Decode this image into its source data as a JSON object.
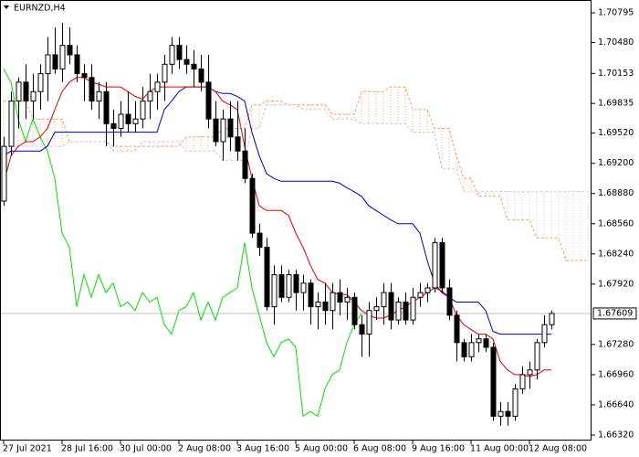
{
  "chart_data": {
    "type": "candlestick",
    "title": "EURNZD,H4",
    "x": [
      "27 Jul 2021",
      null,
      null,
      null,
      null,
      null,
      null,
      null,
      "28 Jul 16:00",
      null,
      null,
      null,
      null,
      null,
      null,
      null,
      "30 Jul 00:00",
      null,
      null,
      null,
      null,
      null,
      null,
      null,
      "2 Aug 08:00",
      null,
      null,
      null,
      null,
      null,
      null,
      null,
      "3 Aug 16:00",
      null,
      null,
      null,
      null,
      null,
      null,
      null,
      "5 Aug 00:00",
      null,
      null,
      null,
      null,
      null,
      null,
      null,
      "6 Aug 08:00",
      null,
      null,
      null,
      null,
      null,
      null,
      null,
      "9 Aug 16:00",
      null,
      null,
      null,
      null,
      null,
      null,
      null,
      "11 Aug 00:00",
      null,
      null,
      null,
      null,
      null,
      null,
      null,
      "12 Aug 08:00",
      null,
      null,
      null,
      null,
      null,
      null,
      null,
      null
    ],
    "open": [
      1.688,
      1.6938,
      1.6986,
      1.7006,
      1.6986,
      1.6996,
      1.7015,
      1.7035,
      1.702,
      1.7045,
      1.7035,
      1.7015,
      1.7011,
      1.6986,
      1.6996,
      1.6962,
      1.6957,
      1.6972,
      1.6962,
      1.6967,
      1.6986,
      1.6996,
      1.7006,
      1.7025,
      1.7045,
      1.703,
      1.7025,
      1.702,
      1.7006,
      1.6967,
      1.6943,
      1.6967,
      1.6948,
      1.6933,
      1.6904,
      1.6846,
      1.6831,
      1.6768,
      1.6802,
      1.6778,
      1.6802,
      1.6783,
      1.6793,
      1.6768,
      1.6773,
      1.6764,
      1.6783,
      1.6773,
      1.6778,
      1.6749,
      1.6739,
      1.6764,
      1.6768,
      1.6783,
      1.6754,
      1.6773,
      1.6754,
      1.6778,
      1.6783,
      1.6788,
      1.6836,
      1.6788,
      1.6759,
      1.673,
      1.6715,
      1.673,
      1.6734,
      1.6725,
      1.6652,
      1.6657,
      1.6652,
      1.6681,
      1.6696,
      1.6701,
      1.673,
      1.6749,
      null,
      null,
      null,
      null,
      null
    ],
    "high": [
      1.6948,
      1.6996,
      1.7011,
      1.7025,
      1.7015,
      1.7025,
      1.7054,
      1.7064,
      1.7069,
      1.7064,
      1.7045,
      1.7025,
      1.7025,
      1.7006,
      1.7006,
      1.6977,
      1.6986,
      1.6996,
      1.6986,
      1.7001,
      1.7015,
      1.7015,
      1.7035,
      1.7054,
      1.7054,
      1.7045,
      1.704,
      1.7035,
      1.7035,
      1.6986,
      1.6977,
      1.6986,
      1.6986,
      1.6957,
      1.6909,
      1.6856,
      1.6841,
      1.6812,
      1.6812,
      1.6807,
      1.6807,
      1.6802,
      1.6797,
      1.6783,
      1.6793,
      1.6793,
      1.6797,
      1.6788,
      1.6783,
      1.6759,
      1.6773,
      1.6778,
      1.6793,
      1.6793,
      1.6778,
      1.6783,
      1.6788,
      1.6793,
      1.6793,
      1.6841,
      1.6841,
      1.6797,
      1.6764,
      1.6734,
      1.6739,
      1.6739,
      1.6739,
      1.673,
      1.6667,
      1.6667,
      1.6686,
      1.6705,
      1.671,
      1.6734,
      1.6759,
      1.6764,
      null,
      null,
      null,
      null,
      null
    ],
    "low": [
      1.6875,
      1.6928,
      1.6957,
      1.6967,
      1.6967,
      1.6977,
      1.6986,
      1.7015,
      1.7006,
      1.7025,
      1.7006,
      1.6986,
      1.6977,
      1.6967,
      1.6938,
      1.6938,
      1.6948,
      1.6953,
      1.6953,
      1.6957,
      1.6967,
      1.6977,
      1.6986,
      1.7015,
      1.702,
      1.7015,
      1.7001,
      1.6996,
      1.6957,
      1.6938,
      1.6923,
      1.6933,
      1.6923,
      1.6899,
      1.6841,
      1.6822,
      1.6764,
      1.6749,
      1.6773,
      1.6773,
      1.6764,
      1.6764,
      1.6749,
      1.6744,
      1.6749,
      1.6744,
      1.6759,
      1.6754,
      1.6744,
      1.6715,
      1.6715,
      1.6754,
      1.6749,
      1.6744,
      1.6749,
      1.6749,
      1.6749,
      1.6768,
      1.6773,
      1.6783,
      1.6783,
      1.6754,
      1.671,
      1.671,
      1.671,
      1.672,
      1.672,
      1.6647,
      1.6642,
      1.6642,
      1.6647,
      1.6676,
      1.6681,
      1.6691,
      1.6725,
      1.6744,
      null,
      null,
      null,
      null,
      null
    ],
    "close": [
      1.6938,
      1.6986,
      1.7006,
      1.6986,
      1.6996,
      1.7015,
      1.7035,
      1.702,
      1.7045,
      1.7035,
      1.7015,
      1.7011,
      1.6986,
      1.6996,
      1.6962,
      1.6957,
      1.6972,
      1.6962,
      1.6967,
      1.6986,
      1.6996,
      1.7006,
      1.7025,
      1.7045,
      1.703,
      1.7025,
      1.702,
      1.7006,
      1.6967,
      1.6943,
      1.6967,
      1.6948,
      1.6933,
      1.6904,
      1.6846,
      1.6831,
      1.6768,
      1.6802,
      1.6778,
      1.6802,
      1.6783,
      1.6793,
      1.6768,
      1.6773,
      1.6764,
      1.6783,
      1.6773,
      1.6778,
      1.6749,
      1.6739,
      1.6764,
      1.6768,
      1.6783,
      1.6754,
      1.6773,
      1.6754,
      1.6778,
      1.6783,
      1.6788,
      1.6836,
      1.6788,
      1.6759,
      1.673,
      1.6715,
      1.673,
      1.6734,
      1.6725,
      1.6652,
      1.6657,
      1.6652,
      1.6681,
      1.6696,
      1.6701,
      1.673,
      1.6749,
      1.67609,
      null,
      null,
      null,
      null,
      null
    ],
    "bull_color": "#ffffff",
    "bear_color": "#000000",
    "outline_color": "#000000",
    "last_price": 1.67609,
    "last_price_color": "#c0c0c0",
    "cloud": {
      "span_a": {
        "color": "#f4a460",
        "values": [
          1.6986,
          1.6986,
          1.6986,
          1.6986,
          1.6967,
          1.6967,
          1.6967,
          1.6967,
          1.6967,
          1.6943,
          1.6943,
          1.6943,
          1.6943,
          1.6943,
          1.6943,
          1.6938,
          1.6938,
          1.6938,
          1.6938,
          1.6938,
          1.6938,
          1.6938,
          1.6938,
          1.6938,
          1.6938,
          1.6948,
          1.6948,
          1.6948,
          1.6948,
          1.6948,
          1.6957,
          1.6957,
          1.6957,
          1.6957,
          1.6982,
          1.6982,
          1.6986,
          1.6986,
          1.6986,
          1.6982,
          1.6982,
          1.6982,
          1.6982,
          1.6982,
          1.6982,
          1.6972,
          1.6972,
          1.6972,
          1.6972,
          1.6996,
          1.6996,
          1.6996,
          1.6996,
          1.7001,
          1.7001,
          1.7001,
          1.6977,
          1.6977,
          1.6977,
          1.6957,
          1.6957,
          1.6957,
          1.6928,
          1.6904,
          1.6904,
          1.6885,
          1.6885,
          1.6885,
          1.6885,
          1.686,
          1.686,
          1.686,
          1.686,
          1.6841,
          1.6841,
          1.6841,
          1.6841,
          1.6817,
          1.6817,
          1.6817,
          1.6817
        ]
      },
      "span_b": {
        "color": "#d8bfd8",
        "values": [
          1.6938,
          1.6938,
          1.6938,
          1.6938,
          1.6938,
          1.6938,
          1.6938,
          1.6938,
          1.6938,
          1.6943,
          1.6943,
          1.6943,
          1.6943,
          1.6943,
          1.6943,
          1.6933,
          1.6933,
          1.6933,
          1.6933,
          1.6943,
          1.6943,
          1.6943,
          1.6943,
          1.6943,
          1.6943,
          1.6933,
          1.6933,
          1.6933,
          1.6933,
          1.6933,
          1.6923,
          1.6923,
          1.6923,
          1.6923,
          1.6957,
          1.6957,
          1.6982,
          1.6982,
          1.6982,
          1.6982,
          1.6982,
          1.6977,
          1.6977,
          1.6977,
          1.6977,
          1.6967,
          1.6967,
          1.6967,
          1.6967,
          1.6962,
          1.6962,
          1.6962,
          1.6962,
          1.6962,
          1.6962,
          1.6962,
          1.6953,
          1.6953,
          1.6953,
          1.6953,
          1.6914,
          1.6914,
          1.6914,
          1.689,
          1.689,
          1.689,
          1.689,
          1.689,
          1.689,
          1.689,
          1.689,
          1.689,
          1.689,
          1.689,
          1.689,
          1.689,
          1.689,
          1.689,
          1.689,
          1.689,
          1.689
        ]
      }
    },
    "lines": [
      {
        "color": "#00e000",
        "values": [
          1.702,
          1.7006,
          1.6967,
          1.6943,
          1.6967,
          1.6948,
          1.6933,
          1.6904,
          1.6846,
          1.6831,
          1.6768,
          1.6802,
          1.6778,
          1.6802,
          1.6783,
          1.6793,
          1.6768,
          1.6773,
          1.6764,
          1.6783,
          1.6773,
          1.6778,
          1.6749,
          1.6739,
          1.6764,
          1.6768,
          1.6783,
          1.6754,
          1.6773,
          1.6754,
          1.6778,
          1.6783,
          1.6788,
          1.6836,
          1.6788,
          1.6759,
          1.673,
          1.6715,
          1.673,
          1.6734,
          1.6725,
          1.6652,
          1.6657,
          1.6652,
          1.6681,
          1.6696,
          1.6701,
          1.673,
          1.6749,
          1.67609,
          null,
          null,
          null,
          null,
          null,
          null,
          null,
          null,
          null,
          null,
          null,
          null,
          null,
          null,
          null,
          null,
          null,
          null,
          null,
          null,
          null,
          null,
          null,
          null,
          null,
          null,
          null,
          null,
          null,
          null,
          null
        ]
      },
      {
        "color": "#0000b0",
        "values": [
          1.6928,
          1.6933,
          1.6933,
          1.6933,
          1.6933,
          1.6933,
          1.6938,
          1.6953,
          1.6953,
          1.6953,
          1.6953,
          1.6953,
          1.6953,
          1.6953,
          1.6953,
          1.6953,
          1.6953,
          1.6953,
          1.6953,
          1.6953,
          1.6953,
          1.6953,
          1.6977,
          1.6986,
          1.6996,
          1.7001,
          1.7001,
          1.7001,
          1.7001,
          1.6996,
          1.6994,
          1.6994,
          1.6991,
          1.6986,
          1.6953,
          1.6928,
          1.6909,
          1.6904,
          1.6901,
          1.6901,
          1.6901,
          1.6901,
          1.6901,
          1.6901,
          1.6901,
          1.6901,
          1.6899,
          1.6894,
          1.689,
          1.6885,
          1.6875,
          1.687,
          1.6865,
          1.686,
          1.6856,
          1.6856,
          1.6856,
          1.6846,
          1.6817,
          1.6793,
          1.6783,
          1.6778,
          1.6773,
          1.6773,
          1.6773,
          1.6773,
          1.6764,
          1.6742,
          1.6739,
          1.6739,
          1.6739,
          1.6739,
          1.6739,
          1.6739,
          1.6739,
          1.6739,
          null,
          null,
          null,
          null,
          null
        ]
      },
      {
        "color": "#e00000",
        "values": [
          1.6899,
          1.6928,
          1.6938,
          1.6943,
          1.6943,
          1.6948,
          1.6957,
          1.6977,
          1.6996,
          1.7006,
          1.7011,
          1.7011,
          1.7006,
          1.7004,
          1.7001,
          1.7001,
          1.7001,
          1.6996,
          1.6991,
          1.6988,
          1.6996,
          1.7001,
          1.7001,
          1.7001,
          1.7001,
          1.7001,
          1.7001,
          1.7001,
          1.7001,
          1.6996,
          1.6986,
          1.6982,
          1.6977,
          1.6938,
          1.6904,
          1.6875,
          1.687,
          1.687,
          1.687,
          1.6865,
          1.6846,
          1.6831,
          1.6812,
          1.6797,
          1.6793,
          1.6783,
          1.6781,
          1.6781,
          1.6773,
          1.6764,
          1.6759,
          1.6756,
          1.6756,
          1.6759,
          1.6764,
          1.6768,
          1.6773,
          1.6778,
          1.6783,
          1.6788,
          1.6785,
          1.6778,
          1.6759,
          1.6749,
          1.6744,
          1.6739,
          1.6739,
          1.6734,
          1.671,
          1.6701,
          1.6696,
          1.6696,
          1.6694,
          1.6696,
          1.6701,
          1.6701,
          null,
          null,
          null,
          null,
          null
        ]
      }
    ],
    "ylim": [
      1.66262,
      1.70931
    ],
    "yticks": [
      1.70795,
      {
        "value": 1.7048,
        "label": "1.70480"
      },
      1.70153,
      1.69835,
      {
        "value": 1.6952,
        "label": "1.69520"
      },
      {
        "value": 1.692,
        "label": "1.69200"
      },
      {
        "value": 1.6888,
        "label": "1.68880"
      },
      {
        "value": 1.6856,
        "label": "1.68560"
      },
      {
        "value": 1.6824,
        "label": "1.68240"
      },
      {
        "value": 1.6792,
        "label": "1.67920"
      },
      {
        "value": 1.6728,
        "label": "1.67280"
      },
      {
        "value": 1.6696,
        "label": "1.66960"
      },
      {
        "value": 1.6664,
        "label": "1.66640"
      },
      {
        "value": 1.6632,
        "label": "1.66320"
      }
    ]
  }
}
